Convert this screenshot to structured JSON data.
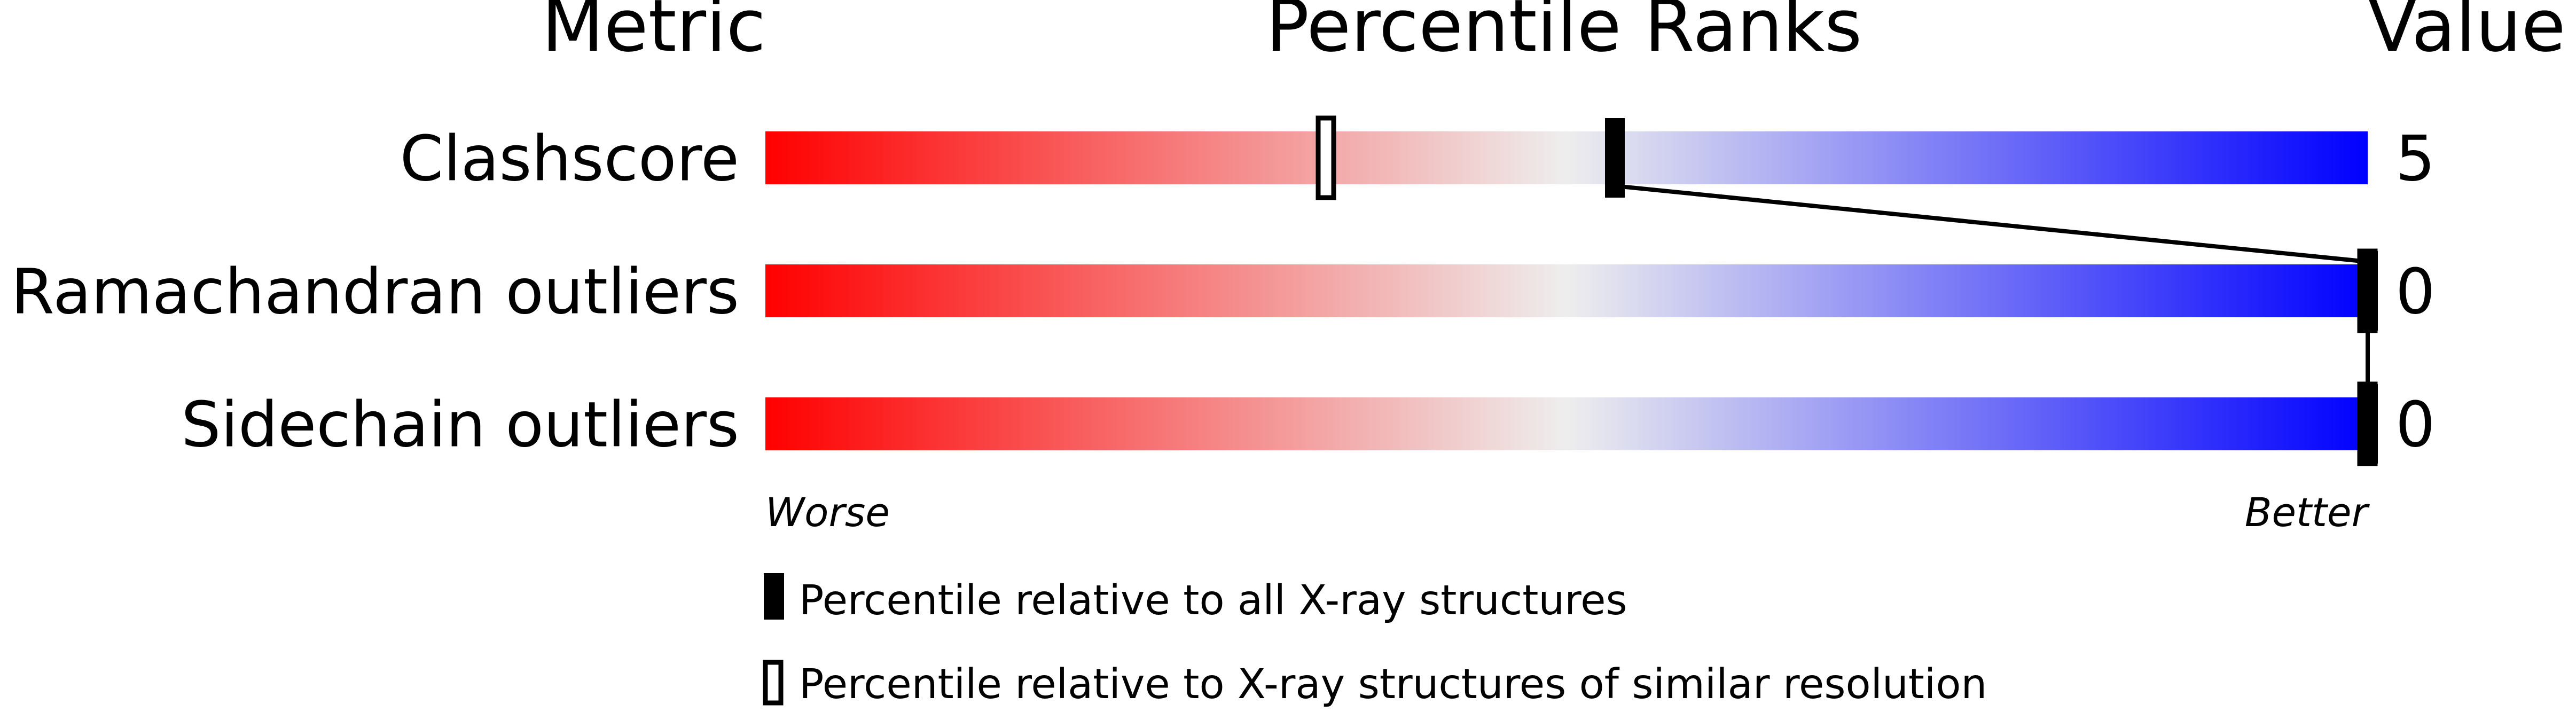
{
  "chart_data": {
    "type": "bar",
    "headers": {
      "metric": "Metric",
      "percentile": "Percentile Ranks",
      "value": "Value"
    },
    "xlim": [
      0,
      100
    ],
    "gradient_colors": {
      "worse": "#ff0000",
      "middle": "#eeeeee",
      "better": "#0000ff"
    },
    "metrics": [
      {
        "name": "Clashscore",
        "value": "5",
        "percentile_all": 53,
        "percentile_similar": 35
      },
      {
        "name": "Ramachandran outliers",
        "value": "0",
        "percentile_all": 100,
        "percentile_similar": 100
      },
      {
        "name": "Sidechain outliers",
        "value": "0",
        "percentile_all": 100,
        "percentile_similar": 100
      }
    ],
    "axis_labels": {
      "left": "Worse",
      "right": "Better"
    },
    "legend": {
      "all": "Percentile relative to all X-ray structures",
      "similar": "Percentile relative to X-ray structures of similar resolution"
    }
  }
}
